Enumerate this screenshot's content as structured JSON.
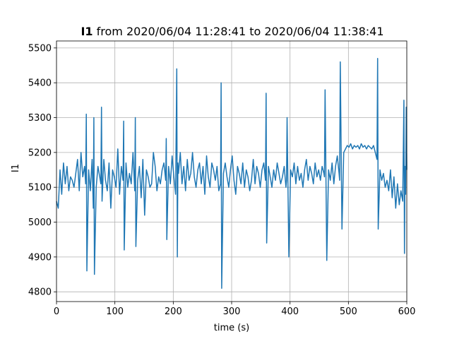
{
  "chart_data": {
    "type": "line",
    "title": {
      "bold": "I1",
      "rest": " from 2020/06/04 11:28:41 to 2020/06/04 11:38:41"
    },
    "xlabel": "time (s)",
    "ylabel": "I1",
    "xlim": [
      0,
      600
    ],
    "ylim": [
      4772,
      5520
    ],
    "xticks": [
      0,
      100,
      200,
      300,
      400,
      500,
      600
    ],
    "yticks": [
      4800,
      4900,
      5000,
      5100,
      5200,
      5300,
      5400,
      5500
    ],
    "grid": true,
    "series": [
      {
        "color": "#1f77b4",
        "x": [
          0,
          3,
          6,
          9,
          12,
          15,
          18,
          21,
          24,
          27,
          30,
          33,
          36,
          39,
          42,
          45,
          48,
          50,
          51,
          52,
          55,
          58,
          61,
          63,
          64,
          65,
          68,
          71,
          74,
          76,
          77,
          78,
          81,
          84,
          87,
          90,
          93,
          96,
          99,
          102,
          105,
          108,
          111,
          114,
          115,
          116,
          119,
          122,
          125,
          128,
          131,
          134,
          135,
          136,
          139,
          142,
          145,
          148,
          151,
          154,
          157,
          160,
          163,
          166,
          169,
          172,
          175,
          178,
          181,
          184,
          187,
          188,
          189,
          192,
          195,
          198,
          201,
          204,
          206,
          207,
          208,
          209,
          212,
          215,
          218,
          221,
          224,
          227,
          230,
          233,
          236,
          239,
          242,
          245,
          248,
          251,
          254,
          257,
          260,
          263,
          266,
          269,
          272,
          275,
          278,
          281,
          282,
          283,
          286,
          289,
          292,
          295,
          298,
          301,
          304,
          307,
          310,
          313,
          316,
          319,
          322,
          325,
          328,
          331,
          334,
          337,
          340,
          343,
          346,
          349,
          352,
          355,
          358,
          359,
          360,
          363,
          366,
          369,
          372,
          375,
          378,
          381,
          384,
          387,
          390,
          393,
          394,
          395,
          398,
          401,
          404,
          407,
          410,
          413,
          416,
          419,
          422,
          425,
          428,
          431,
          434,
          437,
          440,
          443,
          446,
          449,
          452,
          455,
          458,
          459,
          460,
          463,
          466,
          469,
          472,
          475,
          478,
          481,
          484,
          485,
          486,
          489,
          492,
          495,
          498,
          501,
          504,
          507,
          510,
          513,
          516,
          519,
          522,
          525,
          528,
          531,
          534,
          537,
          540,
          543,
          546,
          549,
          550,
          551,
          554,
          557,
          560,
          563,
          566,
          569,
          572,
          575,
          578,
          581,
          584,
          587,
          590,
          593,
          595,
          596,
          597,
          598,
          599,
          600
        ],
        "y": [
          5060,
          5040,
          5150,
          5080,
          5170,
          5110,
          5160,
          5090,
          5130,
          5120,
          5100,
          5140,
          5180,
          5090,
          5200,
          5130,
          5160,
          5110,
          5310,
          4860,
          5150,
          5090,
          5180,
          5040,
          5300,
          4850,
          5100,
          5160,
          5130,
          5110,
          5330,
          5060,
          5180,
          5120,
          5090,
          5170,
          5040,
          5150,
          5130,
          5100,
          5210,
          5080,
          5160,
          5120,
          5290,
          4920,
          5170,
          5100,
          5140,
          5110,
          5200,
          5090,
          5300,
          4930,
          5120,
          5160,
          5070,
          5180,
          5020,
          5150,
          5130,
          5100,
          5110,
          5200,
          5160,
          5090,
          5130,
          5110,
          5150,
          5170,
          5120,
          5240,
          4950,
          5160,
          5110,
          5190,
          5130,
          5080,
          5440,
          4900,
          5170,
          5140,
          5200,
          5110,
          5160,
          5090,
          5180,
          5120,
          5140,
          5200,
          5130,
          5100,
          5150,
          5170,
          5110,
          5160,
          5080,
          5190,
          5130,
          5100,
          5170,
          5150,
          5120,
          5160,
          5090,
          5110,
          5400,
          4810,
          5140,
          5170,
          5130,
          5100,
          5150,
          5190,
          5120,
          5080,
          5160,
          5140,
          5110,
          5170,
          5100,
          5150,
          5130,
          5090,
          5120,
          5180,
          5110,
          5160,
          5140,
          5100,
          5150,
          5170,
          5120,
          5370,
          4940,
          5160,
          5130,
          5100,
          5150,
          5120,
          5170,
          5140,
          5110,
          5130,
          5160,
          5100,
          5120,
          5300,
          4900,
          5150,
          5130,
          5170,
          5110,
          5160,
          5120,
          5140,
          5100,
          5150,
          5180,
          5120,
          5160,
          5140,
          5110,
          5170,
          5130,
          5150,
          5120,
          5160,
          5140,
          5130,
          5380,
          4890,
          5150,
          5120,
          5170,
          5110,
          5160,
          5190,
          5140,
          5120,
          5460,
          4980,
          5200,
          5210,
          5220,
          5215,
          5225,
          5210,
          5220,
          5215,
          5220,
          5210,
          5225,
          5215,
          5220,
          5210,
          5220,
          5215,
          5210,
          5220,
          5200,
          5180,
          5470,
          4980,
          5150,
          5120,
          5140,
          5100,
          5120,
          5090,
          5150,
          5070,
          5130,
          5040,
          5110,
          5050,
          5090,
          5060,
          5350,
          4910,
          5160,
          5080,
          5330,
          5150
        ]
      }
    ]
  }
}
